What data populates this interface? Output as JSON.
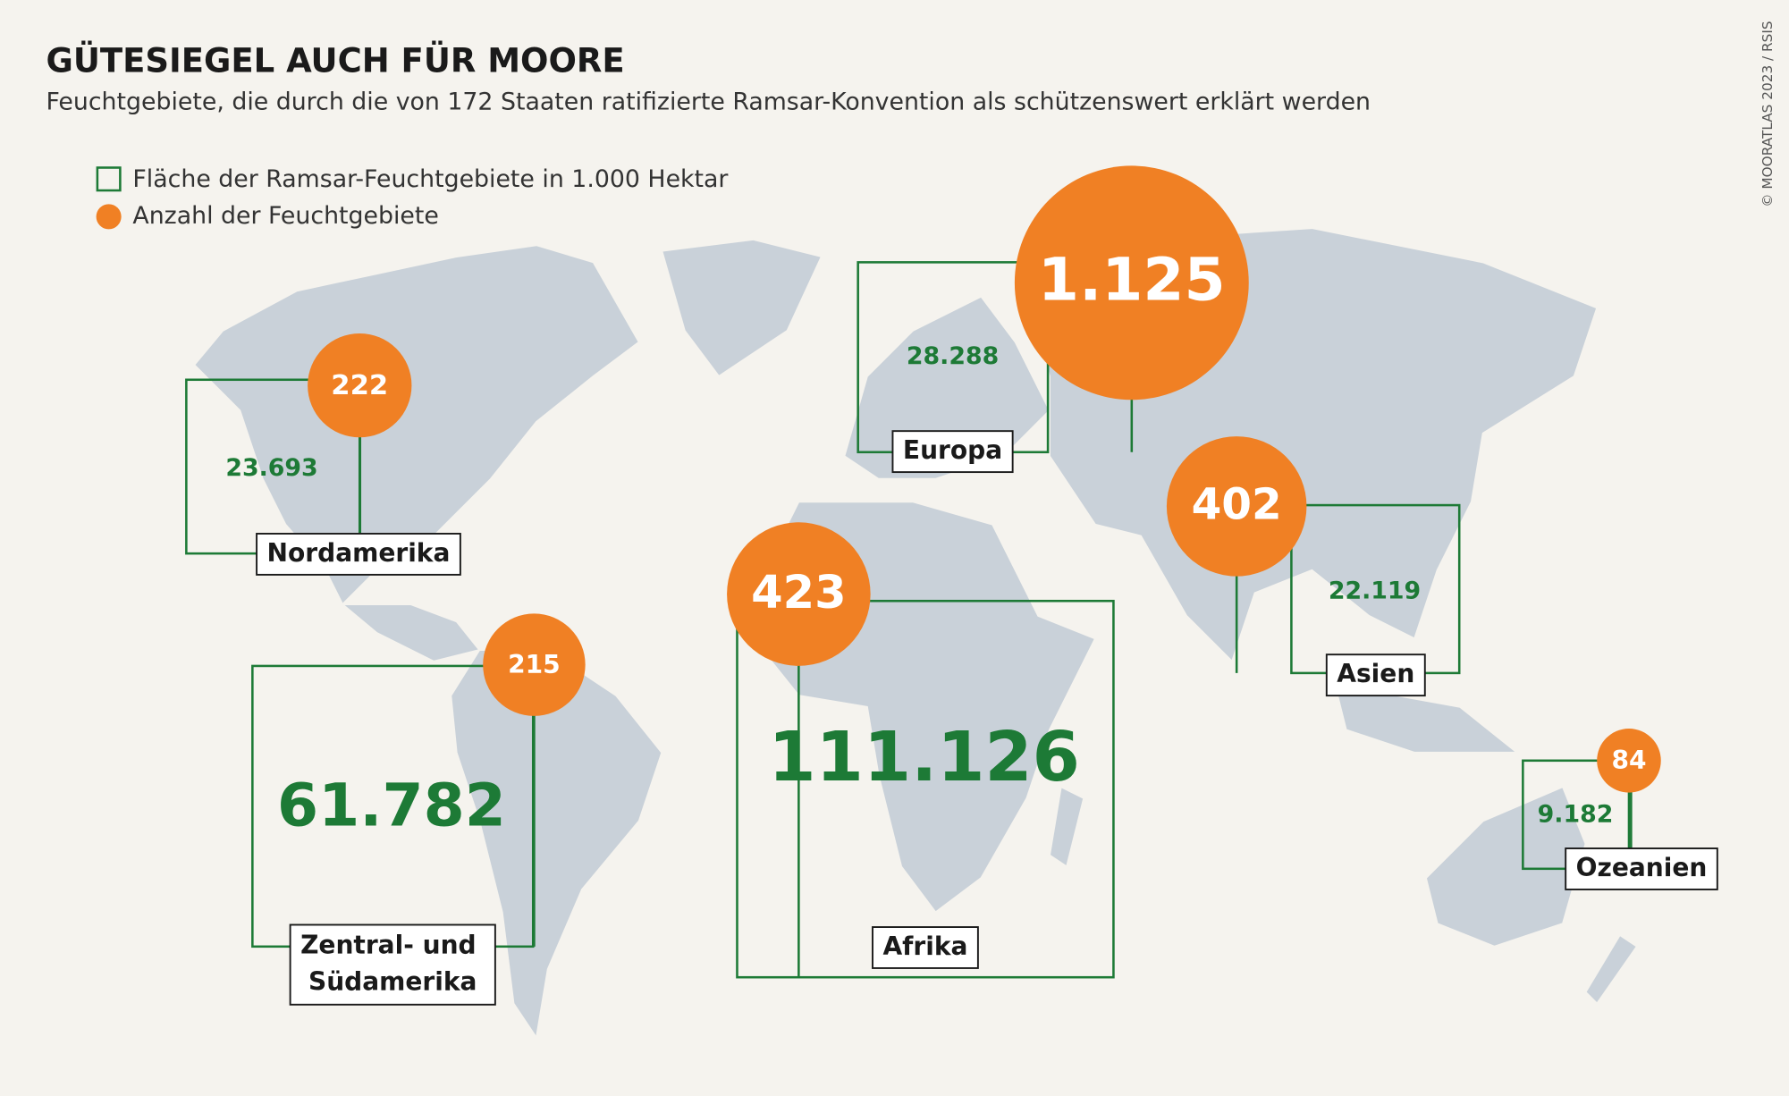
{
  "chart_data": {
    "type": "box-bubble-map",
    "title": "GÜTESIEGEL AUCH FÜR MOORE",
    "subtitle": "Feuchtgebiete, die durch die von 172 Staaten ratifizierte Ramsar-Konvention als schützenswert erklärt werden",
    "credit": "© MOORATLAS 2023 / RSIS",
    "categories": [
      "Nordamerika",
      "Europa",
      "Asien",
      "Afrika",
      "Zentral- und Südamerika",
      "Ozeanien"
    ],
    "series": [
      {
        "name": "Fläche der Ramsar-Feuchtgebiete in 1.000 Hektar",
        "color": "#1d7a36",
        "values": [
          23693,
          28288,
          22119,
          111126,
          61782,
          9182
        ],
        "value_labels": [
          "23.693",
          "28.288",
          "22.119",
          "111.126",
          "61.782",
          "9.182"
        ]
      },
      {
        "name": "Anzahl der Feuchtgebiete",
        "color": "#f08024",
        "values": [
          222,
          1125,
          402,
          423,
          215,
          84
        ],
        "value_labels": [
          "222",
          "1.125",
          "402",
          "423",
          "215",
          "84"
        ]
      }
    ]
  }
}
